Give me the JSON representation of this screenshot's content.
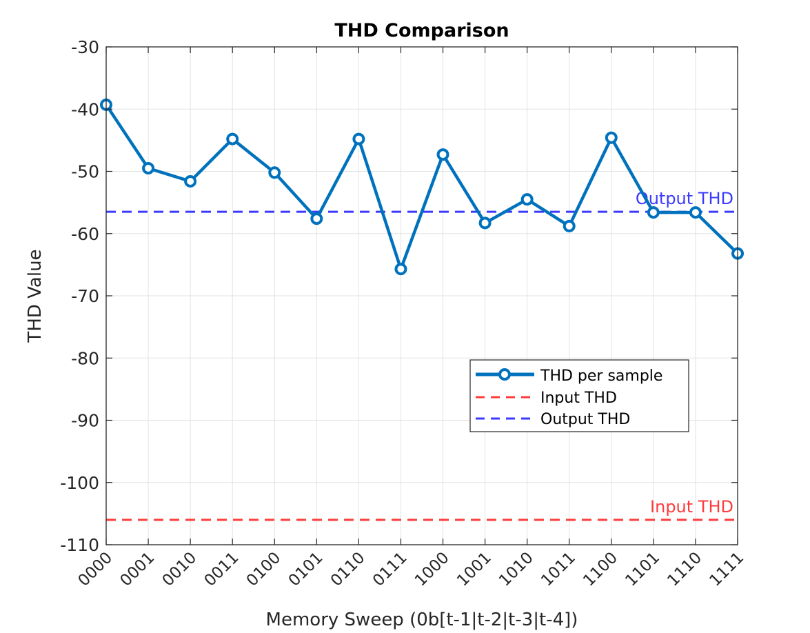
{
  "chart_data": {
    "type": "line",
    "title": "THD Comparison",
    "xlabel": "Memory Sweep (0b[t-1|t-2|t-3|t-4])",
    "ylabel": "THD Value",
    "categories": [
      "0000",
      "0001",
      "0010",
      "0011",
      "0100",
      "0101",
      "0110",
      "0111",
      "1000",
      "1001",
      "1010",
      "1011",
      "1100",
      "1101",
      "1110",
      "1111"
    ],
    "ylim": [
      -110,
      -30
    ],
    "yticks": [
      -30,
      -40,
      -50,
      -60,
      -70,
      -80,
      -90,
      -100,
      -110
    ],
    "grid": true,
    "series": [
      {
        "name": "THD per sample",
        "values": [
          -39.3,
          -49.5,
          -51.6,
          -44.8,
          -50.2,
          -57.6,
          -44.8,
          -65.7,
          -47.3,
          -58.3,
          -54.5,
          -58.8,
          -44.6,
          -56.6,
          -56.6,
          -63.2
        ],
        "color": "#0072BD",
        "marker": "circle"
      }
    ],
    "reference_lines": [
      {
        "name": "Input THD",
        "value": -106,
        "color": "#ff3b3b",
        "label": "Input THD"
      },
      {
        "name": "Output THD",
        "value": -56.5,
        "color": "#3a3aff",
        "label": "Output THD"
      }
    ],
    "legend": {
      "position": "center-right",
      "entries": [
        "THD per sample",
        "Input THD",
        "Output THD"
      ]
    }
  }
}
